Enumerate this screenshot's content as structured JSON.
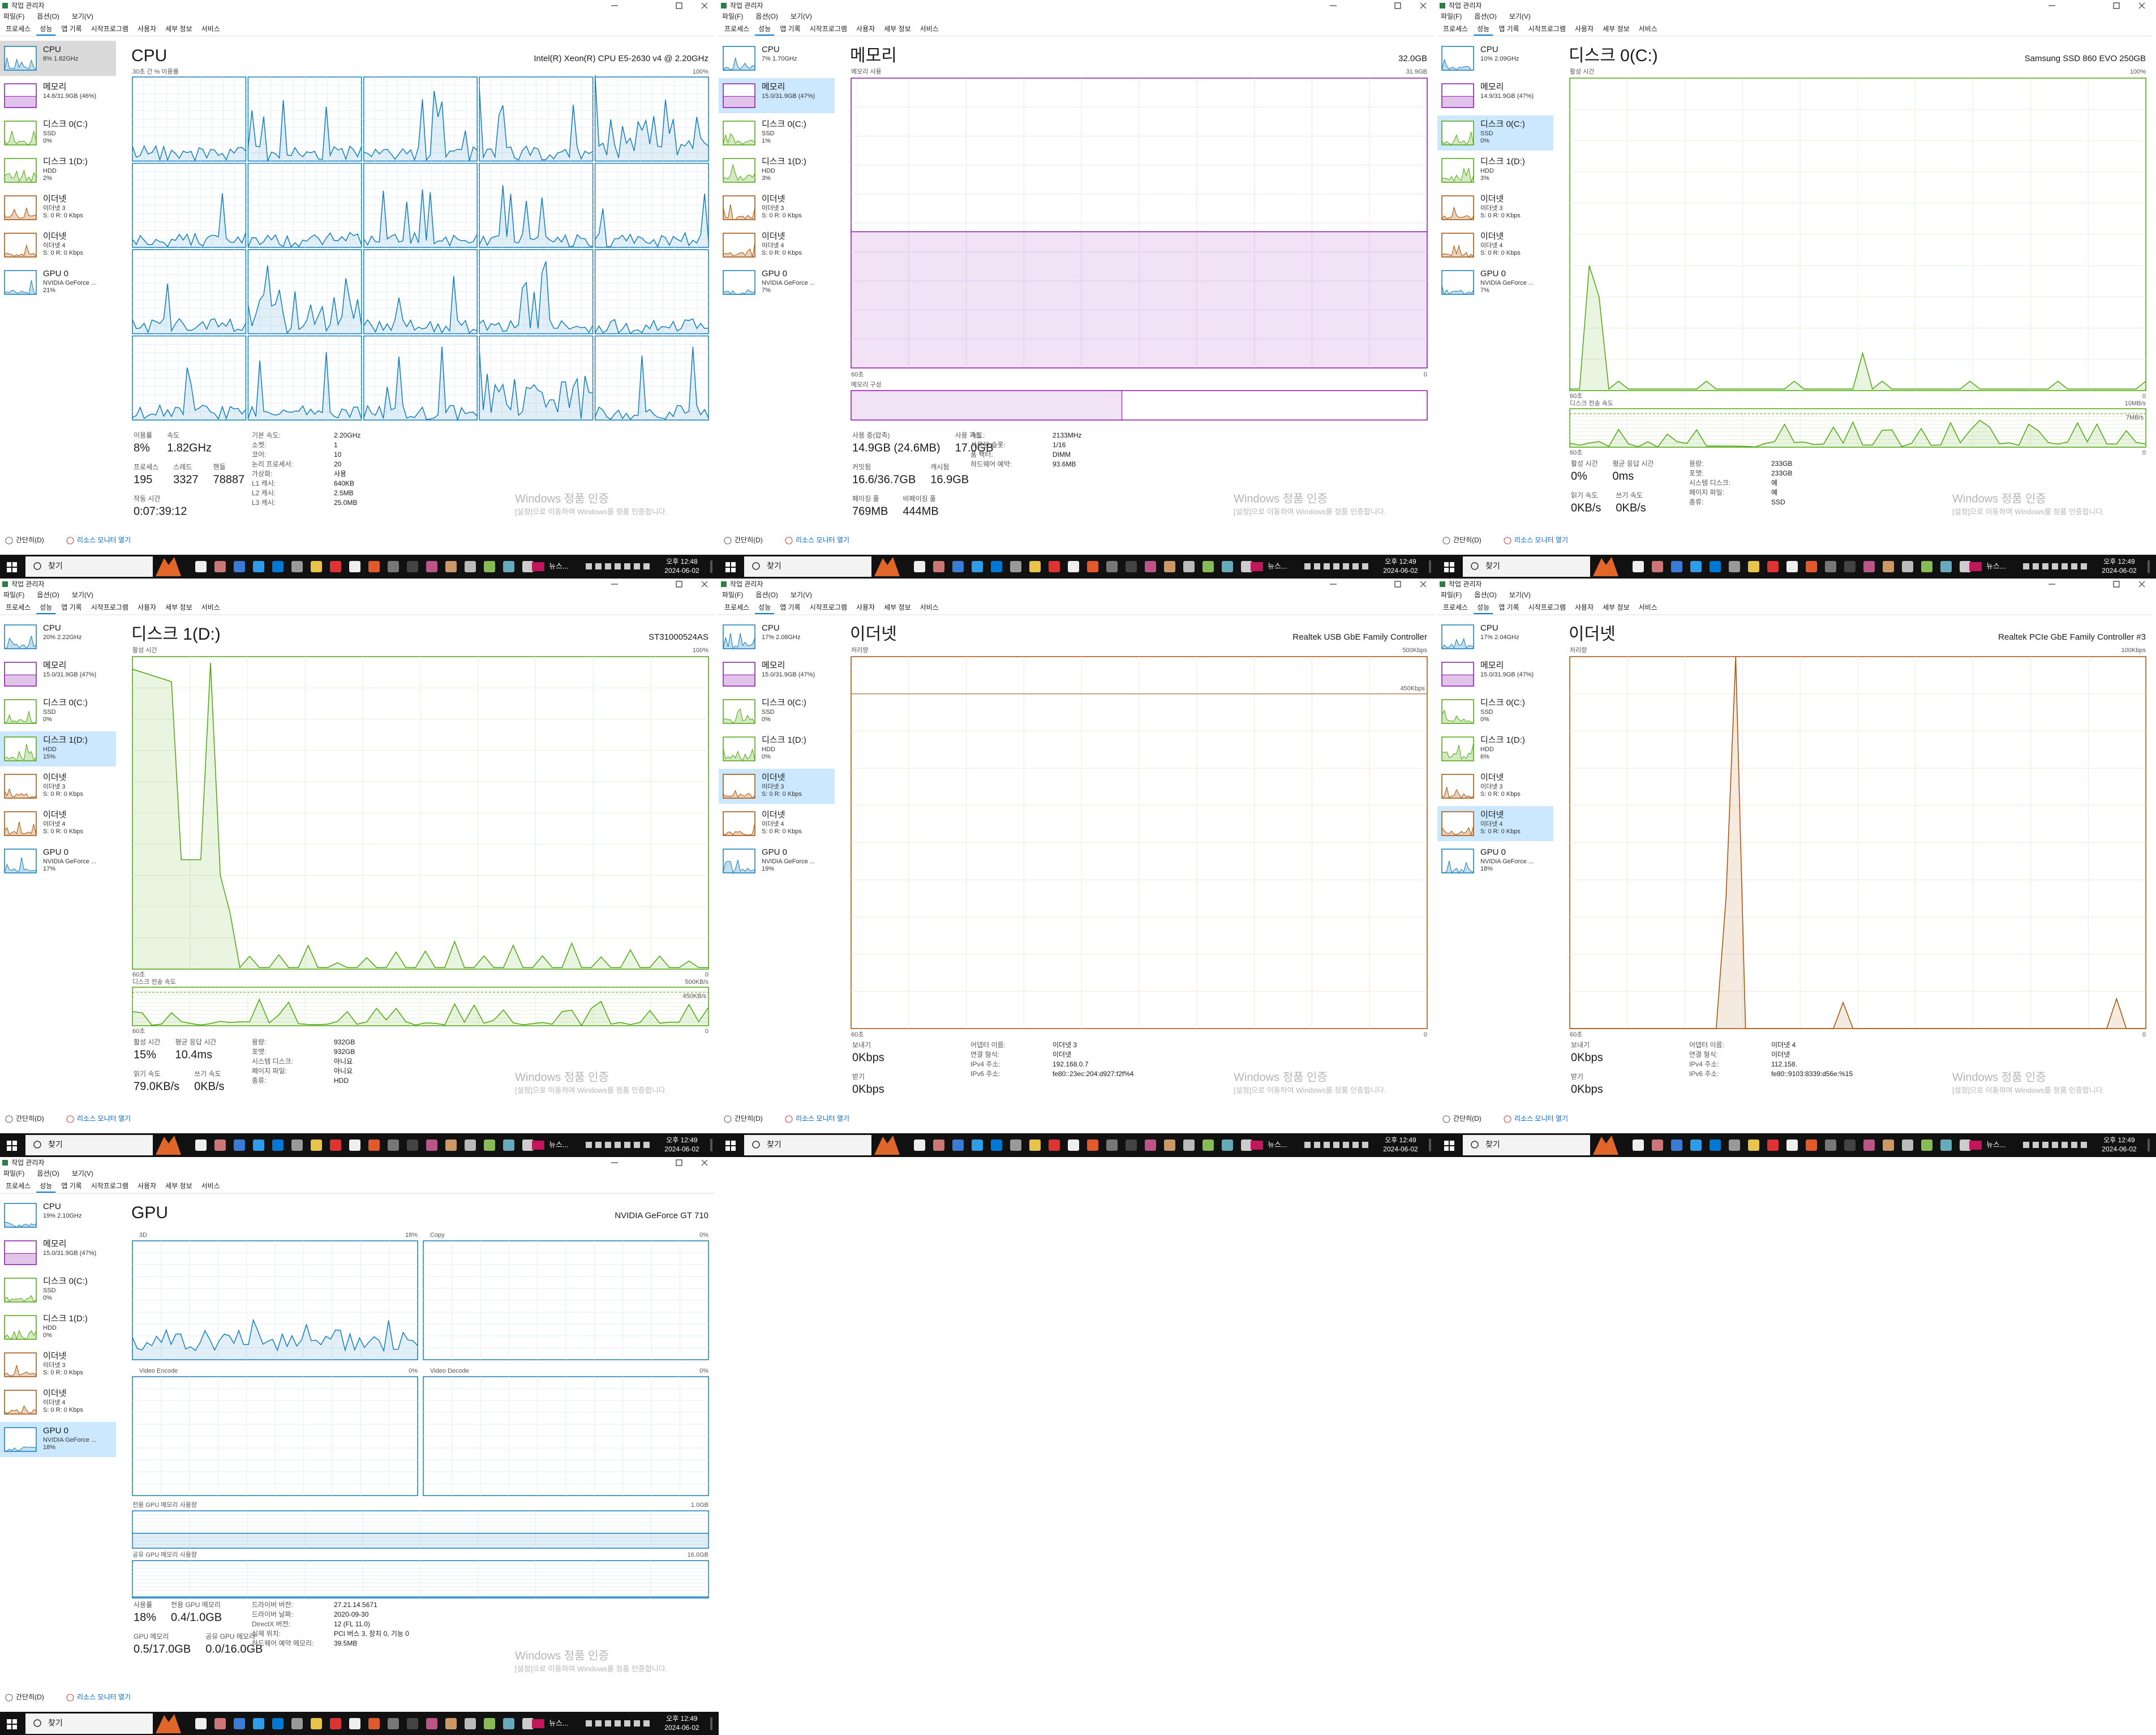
{
  "window_title": "작업 관리자",
  "menu": [
    "파일(F)",
    "옵션(O)",
    "보기(V)"
  ],
  "tabs": [
    "프로세스",
    "성능",
    "앱 기록",
    "시작프로그램",
    "사용자",
    "세부 정보",
    "서비스"
  ],
  "footer": [
    "간단히(D)",
    "리소스 모니터 열기"
  ],
  "watermark": [
    "Windows 정품 인증",
    "[설정]으로 이동하여 Windows를 정품 인증합니다."
  ],
  "taskbar": {
    "search": "찾기",
    "news": "뉴스...",
    "date": "2024-06-02"
  },
  "sidebar_colors": [
    "#117dbb",
    "#8b12ae",
    "#4da60c",
    "#4da60c",
    "#a74f01",
    "#a74f01",
    "#117dbb"
  ],
  "panels": [
    {
      "title": "CPU",
      "subtitle": "Intel(R) Xeon(R) CPU E5-2630 v4 @ 2.20GHz",
      "time": "오후 12:48",
      "selected": 0,
      "color": "#117dbb",
      "graph": {
        "kind": "cpu",
        "caption": "30초 간 % 이용률",
        "max": "100%"
      },
      "sidebar": [
        {
          "name": "CPU",
          "lines": [
            "8% 1.82GHz"
          ]
        },
        {
          "name": "메모리",
          "lines": [
            "14.8/31.9GB (46%)"
          ]
        },
        {
          "name": "디스크 0(C:)",
          "lines": [
            "SSD",
            "0%"
          ]
        },
        {
          "name": "디스크 1(D:)",
          "lines": [
            "HDD",
            "2%"
          ]
        },
        {
          "name": "이더넷",
          "lines": [
            "이더넷 3",
            "S: 0 R: 0 Kbps"
          ]
        },
        {
          "name": "이더넷",
          "lines": [
            "이더넷 4",
            "S: 0 R: 0 Kbps"
          ]
        },
        {
          "name": "GPU 0",
          "lines": [
            "NVIDIA GeForce ...",
            "21%"
          ]
        }
      ],
      "stats": [
        [
          {
            "label": "이용률",
            "value": "8%"
          },
          {
            "label": "속도",
            "value": "1.82GHz"
          }
        ],
        [
          {
            "label": "프로세스",
            "value": "195"
          },
          {
            "label": "스레드",
            "value": "3327"
          },
          {
            "label": "핸들",
            "value": "78887"
          }
        ],
        [
          {
            "label": "작동 시간",
            "value": "0:07:39:12"
          }
        ]
      ],
      "details": [
        {
          "label": "기본 속도:",
          "value": "2.20GHz"
        },
        {
          "label": "소켓:",
          "value": "1"
        },
        {
          "label": "코어:",
          "value": "10"
        },
        {
          "label": "논리 프로세서:",
          "value": "20"
        },
        {
          "label": "가상화:",
          "value": "사용"
        },
        {
          "label": "L1 캐시:",
          "value": "640KB"
        },
        {
          "label": "L2 캐시:",
          "value": "2.5MB"
        },
        {
          "label": "L3 캐시:",
          "value": "25.0MB"
        }
      ]
    },
    {
      "title": "메모리",
      "subtitle": "32.0GB",
      "time": "오후 12:49",
      "selected": 1,
      "color": "#8b12ae",
      "graph": {
        "kind": "memory",
        "caption": "메모리 사용",
        "max": "31.9GB",
        "time": "60초",
        "min": "0",
        "composition": "메모리 구성"
      },
      "sidebar": [
        {
          "name": "CPU",
          "lines": [
            "7% 1.70GHz"
          ]
        },
        {
          "name": "메모리",
          "lines": [
            "15.0/31.9GB (47%)"
          ]
        },
        {
          "name": "디스크 0(C:)",
          "lines": [
            "SSD",
            "1%"
          ]
        },
        {
          "name": "디스크 1(D:)",
          "lines": [
            "HDD",
            "3%"
          ]
        },
        {
          "name": "이더넷",
          "lines": [
            "이더넷 3",
            "S: 0 R: 0 Kbps"
          ]
        },
        {
          "name": "이더넷",
          "lines": [
            "이더넷 4",
            "S: 0 R: 0 Kbps"
          ]
        },
        {
          "name": "GPU 0",
          "lines": [
            "NVIDIA GeForce ...",
            "7%"
          ]
        }
      ],
      "stats": [
        [
          {
            "label": "사용 중(압축)",
            "value": "14.9GB (24.6MB)"
          },
          {
            "label": "사용 가능",
            "value": "17.0GB"
          }
        ],
        [
          {
            "label": "커밋됨",
            "value": "16.6/36.7GB"
          },
          {
            "label": "캐시됨",
            "value": "16.9GB"
          }
        ],
        [
          {
            "label": "페이징 풀",
            "value": "769MB"
          },
          {
            "label": "비페이징 풀",
            "value": "444MB"
          }
        ]
      ],
      "details": [
        {
          "label": "속도:",
          "value": "2133MHz"
        },
        {
          "label": "사용된 슬롯:",
          "value": "1/16"
        },
        {
          "label": "폼 팩터:",
          "value": "DIMM"
        },
        {
          "label": "하드웨어 예약:",
          "value": "93.6MB"
        }
      ]
    },
    {
      "title": "디스크 0(C:)",
      "subtitle": "Samsung SSD 860 EVO 250GB",
      "time": "오후 12:49",
      "selected": 2,
      "color": "#4da60c",
      "graph": {
        "kind": "disk",
        "caption": "활성 시간",
        "max": "100%",
        "time": "60초",
        "min": "0",
        "transfer_caption": "디스크 전송 속도",
        "transfer_max": "10MB/s",
        "transfer_mid": "7MB/s"
      },
      "sidebar": [
        {
          "name": "CPU",
          "lines": [
            "10% 2.09GHz"
          ]
        },
        {
          "name": "메모리",
          "lines": [
            "14.9/31.9GB (47%)"
          ]
        },
        {
          "name": "디스크 0(C:)",
          "lines": [
            "SSD",
            "0%"
          ]
        },
        {
          "name": "디스크 1(D:)",
          "lines": [
            "HDD",
            "3%"
          ]
        },
        {
          "name": "이더넷",
          "lines": [
            "이더넷 3",
            "S: 0 R: 0 Kbps"
          ]
        },
        {
          "name": "이더넷",
          "lines": [
            "이더넷 4",
            "S: 0 R: 0 Kbps"
          ]
        },
        {
          "name": "GPU 0",
          "lines": [
            "NVIDIA GeForce ...",
            "7%"
          ]
        }
      ],
      "stats": [
        [
          {
            "label": "활성 시간",
            "value": "0%"
          },
          {
            "label": "평균 응답 시간",
            "value": "0ms"
          }
        ],
        [
          {
            "label": "읽기 속도",
            "value": "0KB/s"
          },
          {
            "label": "쓰기 속도",
            "value": "0KB/s"
          }
        ]
      ],
      "details": [
        {
          "label": "용량:",
          "value": "233GB"
        },
        {
          "label": "포맷:",
          "value": "233GB"
        },
        {
          "label": "시스템 디스크:",
          "value": "예"
        },
        {
          "label": "페이지 파일:",
          "value": "예"
        },
        {
          "label": "종류:",
          "value": "SSD"
        }
      ]
    },
    {
      "title": "디스크 1(D:)",
      "subtitle": "ST31000524AS",
      "time": "오후 12:49",
      "selected": 3,
      "color": "#4da60c",
      "graph": {
        "kind": "disk",
        "caption": "활성 시간",
        "max": "100%",
        "time": "60초",
        "min": "0",
        "transfer_caption": "디스크 전송 속도",
        "transfer_max": "500KB/s",
        "transfer_mid": "450KB/s"
      },
      "sidebar": [
        {
          "name": "CPU",
          "lines": [
            "20% 2.22GHz"
          ]
        },
        {
          "name": "메모리",
          "lines": [
            "15.0/31.9GB (47%)"
          ]
        },
        {
          "name": "디스크 0(C:)",
          "lines": [
            "SSD",
            "0%"
          ]
        },
        {
          "name": "디스크 1(D:)",
          "lines": [
            "HDD",
            "15%"
          ]
        },
        {
          "name": "이더넷",
          "lines": [
            "이더넷 3",
            "S: 0 R: 0 Kbps"
          ]
        },
        {
          "name": "이더넷",
          "lines": [
            "이더넷 4",
            "S: 0 R: 0 Kbps"
          ]
        },
        {
          "name": "GPU 0",
          "lines": [
            "NVIDIA GeForce ...",
            "17%"
          ]
        }
      ],
      "stats": [
        [
          {
            "label": "활성 시간",
            "value": "15%"
          },
          {
            "label": "평균 응답 시간",
            "value": "10.4ms"
          }
        ],
        [
          {
            "label": "읽기 속도",
            "value": "79.0KB/s"
          },
          {
            "label": "쓰기 속도",
            "value": "0KB/s"
          }
        ]
      ],
      "details": [
        {
          "label": "용량:",
          "value": "932GB"
        },
        {
          "label": "포맷:",
          "value": "932GB"
        },
        {
          "label": "시스템 디스크:",
          "value": "아니요"
        },
        {
          "label": "페이지 파일:",
          "value": "아니요"
        },
        {
          "label": "종류:",
          "value": "HDD"
        }
      ]
    },
    {
      "title": "이더넷",
      "subtitle": "Realtek USB GbE Family Controller",
      "time": "오후 12:49",
      "selected": 4,
      "color": "#a74f01",
      "graph": {
        "kind": "network",
        "caption": "처리량",
        "max": "500Kbps",
        "mid": "450Kbps",
        "time": "60초",
        "min": "0"
      },
      "sidebar": [
        {
          "name": "CPU",
          "lines": [
            "17% 2.08GHz"
          ]
        },
        {
          "name": "메모리",
          "lines": [
            "15.0/31.9GB (47%)"
          ]
        },
        {
          "name": "디스크 0(C:)",
          "lines": [
            "SSD",
            "0%"
          ]
        },
        {
          "name": "디스크 1(D:)",
          "lines": [
            "HDD",
            "0%"
          ]
        },
        {
          "name": "이더넷",
          "lines": [
            "이더넷 3",
            "S: 0 R: 0 Kbps"
          ]
        },
        {
          "name": "이더넷",
          "lines": [
            "이더넷 4",
            "S: 0 R: 0 Kbps"
          ]
        },
        {
          "name": "GPU 0",
          "lines": [
            "NVIDIA GeForce ...",
            "19%"
          ]
        }
      ],
      "stats": [
        [
          {
            "label": "보내기",
            "value": "0Kbps"
          }
        ],
        [
          {
            "label": "받기",
            "value": "0Kbps"
          }
        ]
      ],
      "details": [
        {
          "label": "어댑터 이름:",
          "value": "이더넷 3"
        },
        {
          "label": "연결 형식:",
          "value": "이더넷"
        },
        {
          "label": "IPv4 주소:",
          "value": "192.168.0.7"
        },
        {
          "label": "IPv6 주소:",
          "value": "fe80::23ec:204:d927:f2f%4"
        }
      ]
    },
    {
      "title": "이더넷",
      "subtitle": "Realtek PCIe GbE Family Controller #3",
      "time": "오후 12:49",
      "selected": 5,
      "color": "#a74f01",
      "graph": {
        "kind": "network",
        "caption": "처리량",
        "max": "100Kbps",
        "time": "60초",
        "min": "0"
      },
      "sidebar": [
        {
          "name": "CPU",
          "lines": [
            "17% 2.04GHz"
          ]
        },
        {
          "name": "메모리",
          "lines": [
            "15.0/31.9GB (47%)"
          ]
        },
        {
          "name": "디스크 0(C:)",
          "lines": [
            "SSD",
            "0%"
          ]
        },
        {
          "name": "디스크 1(D:)",
          "lines": [
            "HDD",
            "6%"
          ]
        },
        {
          "name": "이더넷",
          "lines": [
            "이더넷 3",
            "S: 0 R: 0 Kbps"
          ]
        },
        {
          "name": "이더넷",
          "lines": [
            "이더넷 4",
            "S: 0 R: 0 Kbps"
          ]
        },
        {
          "name": "GPU 0",
          "lines": [
            "NVIDIA GeForce ...",
            "18%"
          ]
        }
      ],
      "stats": [
        [
          {
            "label": "보내기",
            "value": "0Kbps"
          }
        ],
        [
          {
            "label": "받기",
            "value": "0Kbps"
          }
        ]
      ],
      "details": [
        {
          "label": "어댑터 이름:",
          "value": "이더넷 4"
        },
        {
          "label": "연결 형식:",
          "value": "이더넷"
        },
        {
          "label": "IPv4 주소:",
          "value": "112.158."
        },
        {
          "label": "IPv6 주소:",
          "value": "fe80::9103:8339:d56e:%15"
        }
      ]
    },
    {
      "title": "GPU",
      "subtitle": "NVIDIA GeForce GT 710",
      "time": "오후 12:49",
      "selected": 6,
      "color": "#117dbb",
      "graph": {
        "kind": "gpu",
        "engines": [
          {
            "name": "3D",
            "value": "18%"
          },
          {
            "name": "Copy",
            "value": "0%"
          },
          {
            "name": "Video Encode",
            "value": "0%"
          },
          {
            "name": "Video Decode",
            "value": "0%"
          }
        ],
        "memory_bars": [
          {
            "caption": "전용 GPU 메모리 사용량",
            "max": "1.0GB"
          },
          {
            "caption": "공유 GPU 메모리 사용량",
            "max": "16.0GB"
          }
        ]
      },
      "sidebar": [
        {
          "name": "CPU",
          "lines": [
            "19% 2.10GHz"
          ]
        },
        {
          "name": "메모리",
          "lines": [
            "15.0/31.9GB (47%)"
          ]
        },
        {
          "name": "디스크 0(C:)",
          "lines": [
            "SSD",
            "0%"
          ]
        },
        {
          "name": "디스크 1(D:)",
          "lines": [
            "HDD",
            "0%"
          ]
        },
        {
          "name": "이더넷",
          "lines": [
            "이더넷 3",
            "S: 0 R: 0 Kbps"
          ]
        },
        {
          "name": "이더넷",
          "lines": [
            "이더넷 4",
            "S: 0 R: 0 Kbps"
          ]
        },
        {
          "name": "GPU 0",
          "lines": [
            "NVIDIA GeForce ...",
            "18%"
          ]
        }
      ],
      "stats": [
        [
          {
            "label": "사용률",
            "value": "18%"
          },
          {
            "label": "전용 GPU 메모리",
            "value": "0.4/1.0GB"
          }
        ],
        [
          {
            "label": "GPU 메모리",
            "value": "0.5/17.0GB"
          },
          {
            "label": "공유 GPU 메모리",
            "value": "0.0/16.0GB"
          }
        ]
      ],
      "details": [
        {
          "label": "드라이버 버전:",
          "value": "27.21.14.5671"
        },
        {
          "label": "드라이버 날짜:",
          "value": "2020-09-30"
        },
        {
          "label": "DirectX 버전:",
          "value": "12 (FL 11.0)"
        },
        {
          "label": "실제 위치:",
          "value": "PCI 버스 3, 장치 0, 기능 0"
        },
        {
          "label": "하드웨어 예약 메모리:",
          "value": "39.5MB"
        }
      ]
    }
  ]
}
